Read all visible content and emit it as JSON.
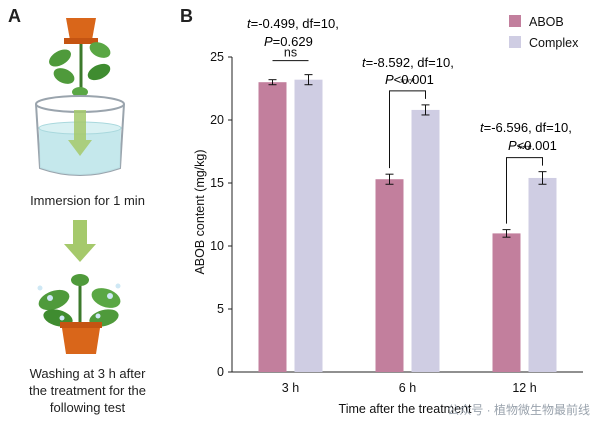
{
  "panel_a": {
    "label": "A",
    "step1_caption": "Immersion for 1 min",
    "step2_caption_lines": [
      "Washing at 3 h after",
      "the treatment for the",
      "following test"
    ]
  },
  "panel_b": {
    "label": "B",
    "stats": [
      {
        "t_label": "t",
        "t_text": "=-0.499, df=10,",
        "p_label": "P",
        "p_text": "=0.629",
        "sig": "ns"
      },
      {
        "t_label": "t",
        "t_text": "=-8.592, df=10,",
        "p_label": "P",
        "p_text": "<0.001",
        "sig": "***"
      },
      {
        "t_label": "t",
        "t_text": "=-6.596, df=10,",
        "p_label": "P",
        "p_text": "<0.001",
        "sig": "***"
      }
    ]
  },
  "watermark": "公众号 · 植物微生物最前线",
  "colors": {
    "abob": "#c27f9d",
    "complex": "#cfcde3",
    "arrow": "#a5c96b",
    "pot": "#d9661a",
    "leaf": "#4f9a3b"
  },
  "chart_data": {
    "type": "bar",
    "title": "",
    "xlabel": "Time after the treatment",
    "ylabel": "ABOB content (mg/kg)",
    "ylim": [
      0,
      25
    ],
    "yticks": [
      0,
      5,
      10,
      15,
      20,
      25
    ],
    "categories": [
      "3 h",
      "6 h",
      "12 h"
    ],
    "legend_position": "top-right",
    "series": [
      {
        "name": "ABOB",
        "color": "#c27f9d",
        "values": [
          23.0,
          15.3,
          11.0
        ],
        "errors": [
          0.2,
          0.4,
          0.3
        ]
      },
      {
        "name": "Complex",
        "color": "#cfcde3",
        "values": [
          23.2,
          20.8,
          15.4
        ],
        "errors": [
          0.4,
          0.4,
          0.5
        ]
      }
    ]
  }
}
